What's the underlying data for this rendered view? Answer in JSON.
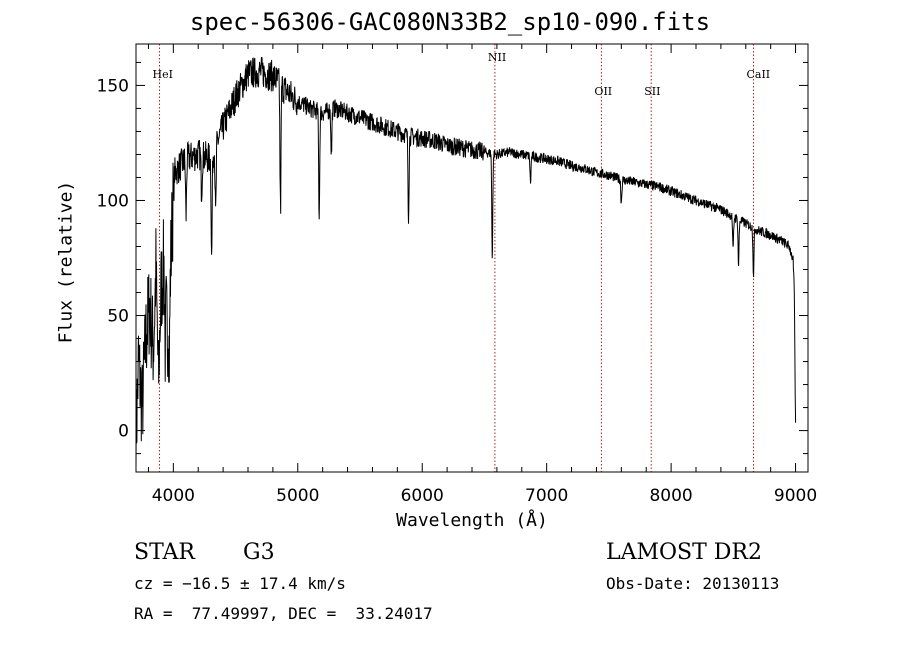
{
  "chart_data": {
    "type": "line",
    "title": "spec-56306-GAC080N33B2_sp10-090.fits",
    "xlabel": "Wavelength (Å)",
    "ylabel": "Flux (relative)",
    "xlim": [
      3700,
      9100
    ],
    "ylim": [
      -18,
      168
    ],
    "xticks": [
      4000,
      5000,
      6000,
      7000,
      8000,
      9000
    ],
    "yticks": [
      0,
      50,
      100,
      150
    ],
    "series_color": "#000000",
    "line_marker_color": "#b22222",
    "line_markers": [
      {
        "label": "HeI",
        "wavelength": 3889
      },
      {
        "label": "NII",
        "wavelength": 6584
      },
      {
        "label": "OII",
        "wavelength": 7440
      },
      {
        "label": "SII",
        "wavelength": 7840
      },
      {
        "label": "CaII",
        "wavelength": 8662
      }
    ],
    "anchor_points": [
      [
        3700,
        -5
      ],
      [
        3720,
        30
      ],
      [
        3750,
        10
      ],
      [
        3780,
        40
      ],
      [
        3810,
        55
      ],
      [
        3840,
        35
      ],
      [
        3860,
        70
      ],
      [
        3880,
        20
      ],
      [
        3900,
        60
      ],
      [
        3930,
        75
      ],
      [
        3950,
        40
      ],
      [
        3970,
        60
      ],
      [
        3990,
        90
      ],
      [
        4010,
        112
      ],
      [
        4100,
        118
      ],
      [
        4200,
        120
      ],
      [
        4300,
        118
      ],
      [
        4400,
        132
      ],
      [
        4500,
        145
      ],
      [
        4600,
        155
      ],
      [
        4700,
        156
      ],
      [
        4800,
        154
      ],
      [
        4900,
        148
      ],
      [
        5000,
        143
      ],
      [
        5100,
        140
      ],
      [
        5200,
        138
      ],
      [
        5300,
        140
      ],
      [
        5400,
        138
      ],
      [
        5500,
        136
      ],
      [
        5600,
        134
      ],
      [
        5700,
        132
      ],
      [
        5800,
        130
      ],
      [
        5900,
        128
      ],
      [
        6000,
        127
      ],
      [
        6100,
        126
      ],
      [
        6200,
        124
      ],
      [
        6300,
        123
      ],
      [
        6400,
        122
      ],
      [
        6500,
        121
      ],
      [
        6600,
        120
      ],
      [
        6700,
        121
      ],
      [
        6800,
        120
      ],
      [
        6900,
        119
      ],
      [
        7000,
        118
      ],
      [
        7100,
        117
      ],
      [
        7200,
        115
      ],
      [
        7300,
        114
      ],
      [
        7400,
        112
      ],
      [
        7500,
        111
      ],
      [
        7600,
        109
      ],
      [
        7700,
        108
      ],
      [
        7800,
        107
      ],
      [
        7900,
        106
      ],
      [
        8000,
        104
      ],
      [
        8100,
        102
      ],
      [
        8200,
        100
      ],
      [
        8300,
        98
      ],
      [
        8400,
        96
      ],
      [
        8500,
        93
      ],
      [
        8600,
        90
      ],
      [
        8700,
        87
      ],
      [
        8800,
        85
      ],
      [
        8900,
        82
      ],
      [
        8950,
        80
      ],
      [
        8980,
        74
      ],
      [
        8990,
        60
      ],
      [
        9000,
        2
      ]
    ],
    "absorption_features": [
      [
        3934,
        30
      ],
      [
        3968,
        25
      ],
      [
        4102,
        25
      ],
      [
        4227,
        15
      ],
      [
        4308,
        45
      ],
      [
        4340,
        30
      ],
      [
        4861,
        55
      ],
      [
        5172,
        45
      ],
      [
        5270,
        20
      ],
      [
        5890,
        35
      ],
      [
        6563,
        45
      ],
      [
        6870,
        12
      ],
      [
        7600,
        10
      ],
      [
        8498,
        15
      ],
      [
        8542,
        20
      ],
      [
        8662,
        20
      ]
    ]
  },
  "info": {
    "object_class": "STAR",
    "subclass": "G3",
    "survey": "LAMOST DR2",
    "cz": "cz = −16.5 ± 17.4 km/s",
    "obs_date": "Obs-Date: 20130113",
    "coords": "RA =  77.49997, DEC =  33.24017"
  }
}
